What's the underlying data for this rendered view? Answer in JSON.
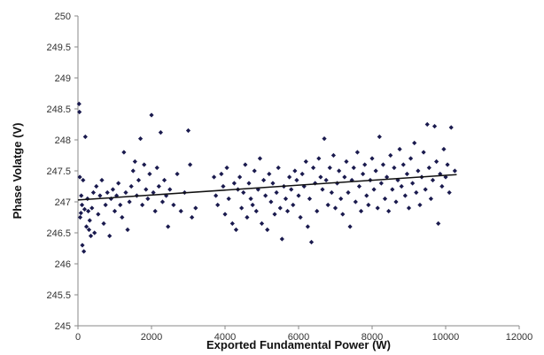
{
  "chart_data": {
    "type": "scatter",
    "title": "",
    "xlabel": "Exported Fundamental Power (W)",
    "ylabel": "Phase Volatge (V)",
    "xlim": [
      0,
      12000
    ],
    "ylim": [
      245,
      250
    ],
    "grid": false,
    "legend": "none",
    "x_ticks": [
      "0",
      "2000",
      "4000",
      "6000",
      "8000",
      "10000",
      "12000"
    ],
    "y_ticks": [
      "245",
      "245.5",
      "246",
      "246.5",
      "247",
      "247.5",
      "248",
      "248.5",
      "249",
      "249.5",
      "250"
    ],
    "point_color": "#1a1a4e",
    "trendline": {
      "x": [
        0,
        10300
      ],
      "y": [
        247.03,
        247.44
      ]
    },
    "series": [
      {
        "points": [
          [
            30,
            248.58
          ],
          [
            40,
            248.45
          ],
          [
            50,
            247.4
          ],
          [
            60,
            246.75
          ],
          [
            80,
            246.82
          ],
          [
            90,
            247.1
          ],
          [
            110,
            246.95
          ],
          [
            120,
            246.3
          ],
          [
            140,
            247.35
          ],
          [
            160,
            246.2
          ],
          [
            180,
            246.88
          ],
          [
            200,
            248.05
          ],
          [
            230,
            246.6
          ],
          [
            260,
            247.05
          ],
          [
            280,
            246.85
          ],
          [
            300,
            246.55
          ],
          [
            320,
            246.7
          ],
          [
            350,
            246.45
          ],
          [
            380,
            246.9
          ],
          [
            420,
            247.15
          ],
          [
            450,
            246.5
          ],
          [
            500,
            247.25
          ],
          [
            550,
            246.8
          ],
          [
            600,
            247.1
          ],
          [
            650,
            247.35
          ],
          [
            700,
            246.65
          ],
          [
            750,
            246.95
          ],
          [
            800,
            247.15
          ],
          [
            860,
            246.45
          ],
          [
            900,
            247.05
          ],
          [
            950,
            247.2
          ],
          [
            1000,
            246.85
          ],
          [
            1050,
            247.1
          ],
          [
            1100,
            247.3
          ],
          [
            1150,
            246.95
          ],
          [
            1200,
            246.75
          ],
          [
            1250,
            247.8
          ],
          [
            1300,
            247.15
          ],
          [
            1350,
            246.55
          ],
          [
            1400,
            247.0
          ],
          [
            1450,
            247.25
          ],
          [
            1500,
            247.5
          ],
          [
            1550,
            247.65
          ],
          [
            1600,
            247.1
          ],
          [
            1650,
            247.35
          ],
          [
            1700,
            248.02
          ],
          [
            1750,
            246.95
          ],
          [
            1800,
            247.6
          ],
          [
            1850,
            247.2
          ],
          [
            1900,
            247.05
          ],
          [
            1950,
            247.45
          ],
          [
            2000,
            248.4
          ],
          [
            2050,
            247.15
          ],
          [
            2100,
            246.85
          ],
          [
            2150,
            247.55
          ],
          [
            2200,
            247.25
          ],
          [
            2250,
            248.12
          ],
          [
            2300,
            247.0
          ],
          [
            2350,
            247.35
          ],
          [
            2400,
            247.1
          ],
          [
            2450,
            246.6
          ],
          [
            2500,
            247.2
          ],
          [
            2600,
            246.95
          ],
          [
            2700,
            247.45
          ],
          [
            2800,
            246.85
          ],
          [
            2900,
            247.15
          ],
          [
            3000,
            248.15
          ],
          [
            3050,
            247.6
          ],
          [
            3100,
            246.75
          ],
          [
            3200,
            246.9
          ],
          [
            3700,
            247.4
          ],
          [
            3750,
            247.1
          ],
          [
            3800,
            246.95
          ],
          [
            3900,
            247.45
          ],
          [
            3950,
            247.25
          ],
          [
            4000,
            246.8
          ],
          [
            4050,
            247.55
          ],
          [
            4100,
            247.05
          ],
          [
            4200,
            246.65
          ],
          [
            4250,
            247.3
          ],
          [
            4300,
            246.55
          ],
          [
            4350,
            247.2
          ],
          [
            4400,
            247.4
          ],
          [
            4450,
            246.9
          ],
          [
            4500,
            247.15
          ],
          [
            4550,
            247.6
          ],
          [
            4600,
            246.75
          ],
          [
            4650,
            247.3
          ],
          [
            4700,
            247.05
          ],
          [
            4750,
            246.95
          ],
          [
            4800,
            247.5
          ],
          [
            4850,
            246.85
          ],
          [
            4900,
            247.2
          ],
          [
            4950,
            247.7
          ],
          [
            5000,
            246.65
          ],
          [
            5050,
            247.35
          ],
          [
            5100,
            247.1
          ],
          [
            5150,
            246.55
          ],
          [
            5200,
            247.45
          ],
          [
            5250,
            247.0
          ],
          [
            5300,
            247.3
          ],
          [
            5350,
            246.8
          ],
          [
            5400,
            247.15
          ],
          [
            5450,
            247.55
          ],
          [
            5500,
            246.9
          ],
          [
            5550,
            246.4
          ],
          [
            5600,
            247.25
          ],
          [
            5650,
            247.05
          ],
          [
            5700,
            246.85
          ],
          [
            5750,
            247.4
          ],
          [
            5800,
            247.2
          ],
          [
            5850,
            246.95
          ],
          [
            5900,
            247.5
          ],
          [
            5950,
            247.35
          ],
          [
            6000,
            247.1
          ],
          [
            6050,
            246.75
          ],
          [
            6100,
            247.45
          ],
          [
            6150,
            247.25
          ],
          [
            6200,
            247.65
          ],
          [
            6250,
            246.6
          ],
          [
            6300,
            247.05
          ],
          [
            6350,
            246.35
          ],
          [
            6400,
            247.55
          ],
          [
            6450,
            247.3
          ],
          [
            6500,
            246.85
          ],
          [
            6550,
            247.7
          ],
          [
            6600,
            247.4
          ],
          [
            6650,
            247.2
          ],
          [
            6700,
            248.02
          ],
          [
            6750,
            247.35
          ],
          [
            6800,
            246.95
          ],
          [
            6850,
            247.55
          ],
          [
            6900,
            247.15
          ],
          [
            6950,
            247.75
          ],
          [
            7000,
            246.9
          ],
          [
            7050,
            247.3
          ],
          [
            7100,
            247.5
          ],
          [
            7150,
            247.05
          ],
          [
            7200,
            246.8
          ],
          [
            7250,
            247.4
          ],
          [
            7300,
            247.65
          ],
          [
            7350,
            247.15
          ],
          [
            7400,
            246.6
          ],
          [
            7450,
            247.35
          ],
          [
            7500,
            247.55
          ],
          [
            7550,
            247.0
          ],
          [
            7600,
            247.8
          ],
          [
            7650,
            247.25
          ],
          [
            7700,
            246.85
          ],
          [
            7750,
            247.45
          ],
          [
            7800,
            247.6
          ],
          [
            7850,
            247.1
          ],
          [
            7900,
            246.95
          ],
          [
            7950,
            247.35
          ],
          [
            8000,
            247.7
          ],
          [
            8050,
            247.2
          ],
          [
            8100,
            247.5
          ],
          [
            8150,
            246.9
          ],
          [
            8200,
            248.05
          ],
          [
            8250,
            247.3
          ],
          [
            8300,
            247.6
          ],
          [
            8350,
            247.05
          ],
          [
            8400,
            247.4
          ],
          [
            8450,
            246.85
          ],
          [
            8500,
            247.75
          ],
          [
            8550,
            247.2
          ],
          [
            8600,
            247.55
          ],
          [
            8650,
            247.0
          ],
          [
            8700,
            247.35
          ],
          [
            8750,
            247.85
          ],
          [
            8800,
            247.25
          ],
          [
            8850,
            247.6
          ],
          [
            8900,
            247.1
          ],
          [
            8950,
            247.45
          ],
          [
            9000,
            246.9
          ],
          [
            9050,
            247.7
          ],
          [
            9100,
            247.3
          ],
          [
            9150,
            247.95
          ],
          [
            9200,
            247.15
          ],
          [
            9250,
            247.5
          ],
          [
            9300,
            246.95
          ],
          [
            9350,
            247.4
          ],
          [
            9400,
            247.8
          ],
          [
            9450,
            247.2
          ],
          [
            9500,
            248.25
          ],
          [
            9550,
            247.55
          ],
          [
            9600,
            247.05
          ],
          [
            9650,
            247.35
          ],
          [
            9700,
            248.22
          ],
          [
            9750,
            247.65
          ],
          [
            9800,
            246.65
          ],
          [
            9850,
            247.45
          ],
          [
            9900,
            247.25
          ],
          [
            9950,
            247.85
          ],
          [
            10000,
            247.4
          ],
          [
            10050,
            247.6
          ],
          [
            10100,
            247.15
          ],
          [
            10150,
            248.2
          ],
          [
            10250,
            247.5
          ]
        ]
      }
    ]
  }
}
